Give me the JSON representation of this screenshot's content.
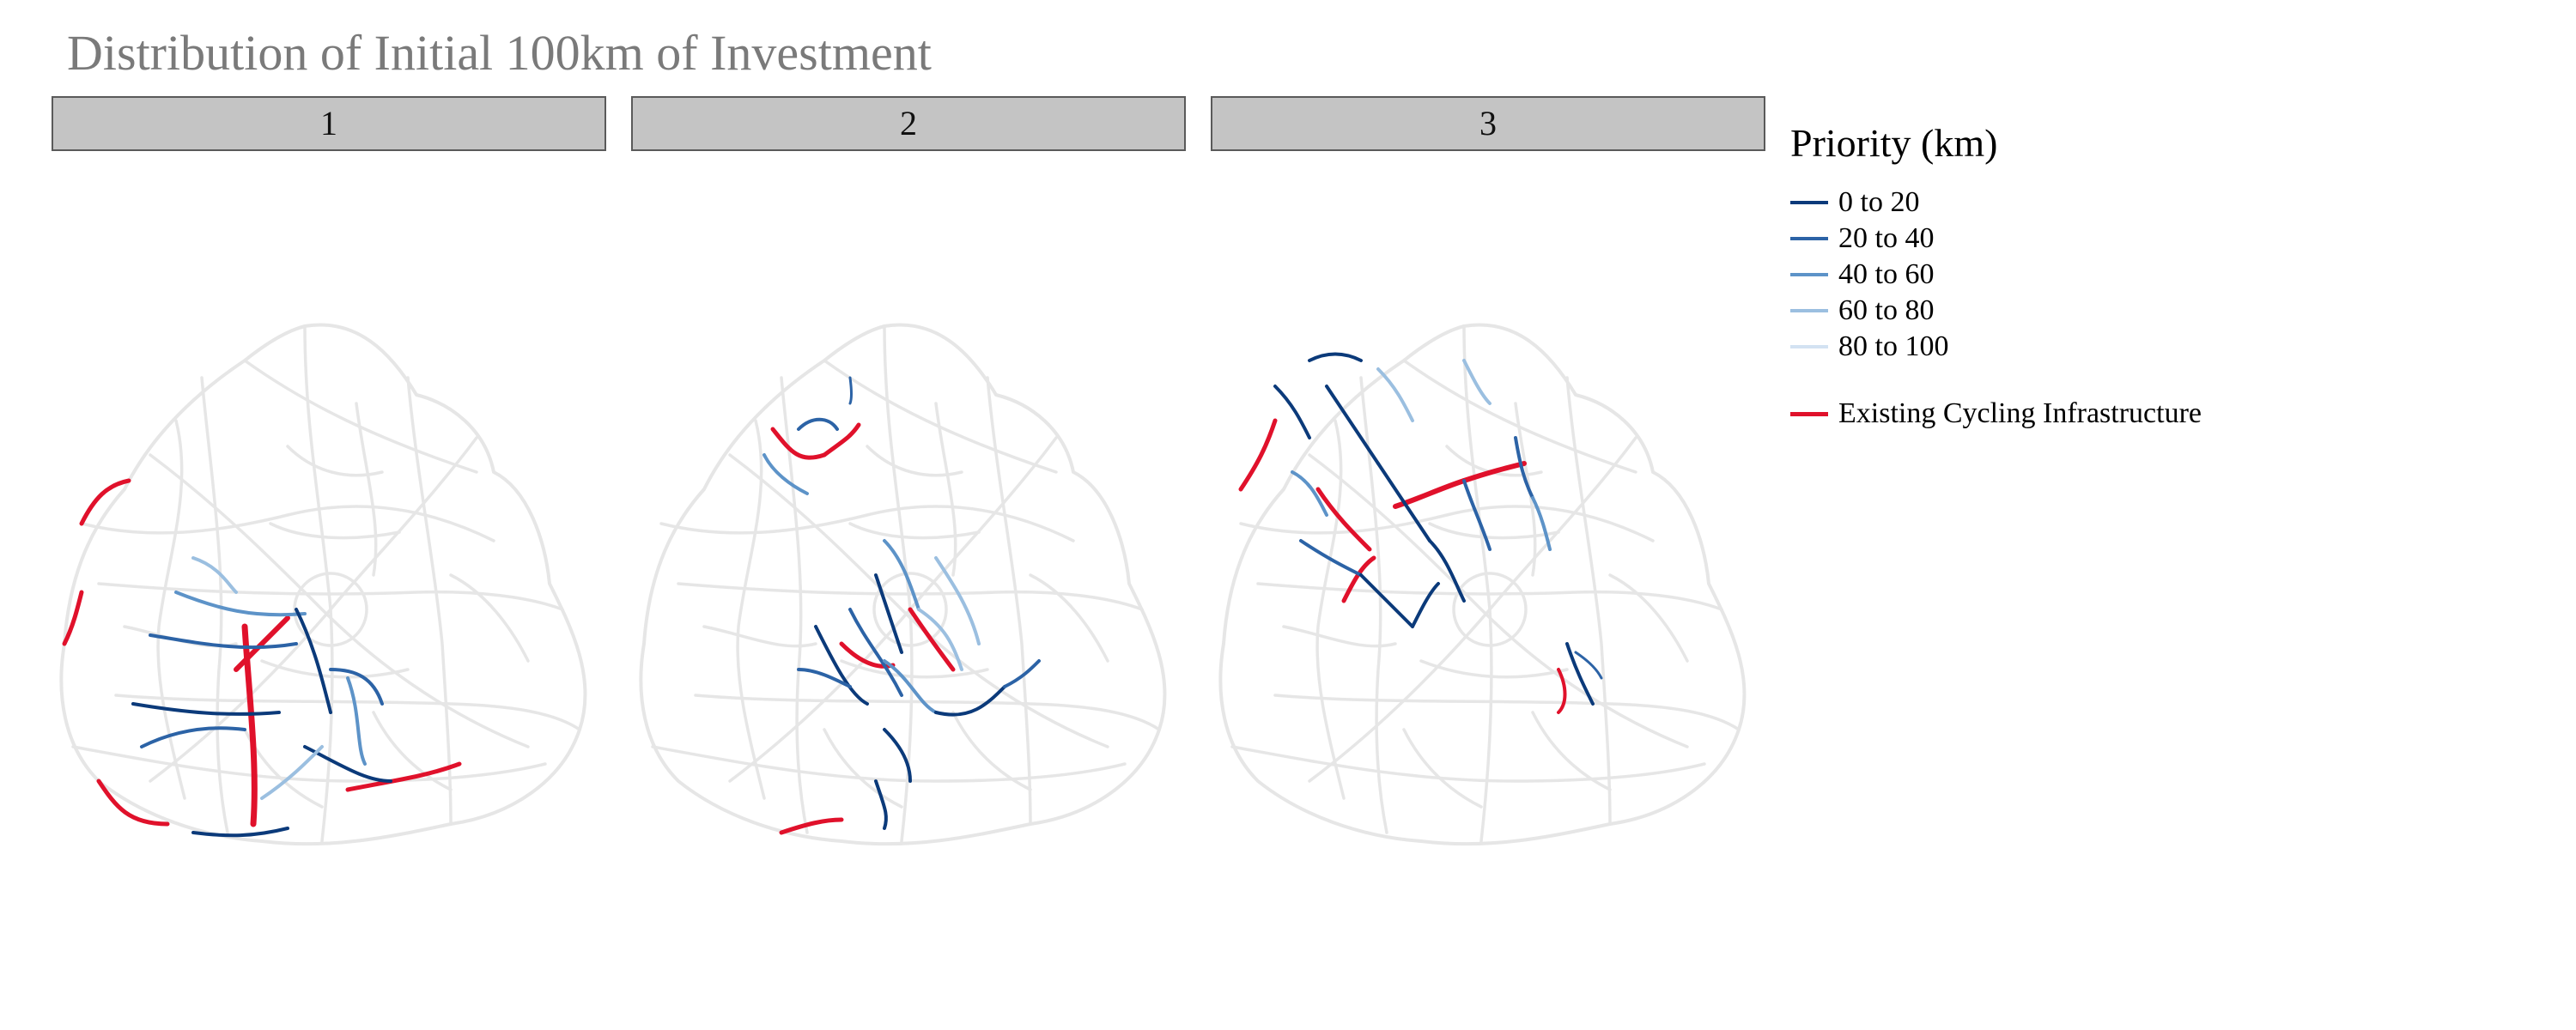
{
  "title": "Distribution of Initial 100km of Investment",
  "facets": [
    {
      "label": "1"
    },
    {
      "label": "2"
    },
    {
      "label": "3"
    }
  ],
  "legend": {
    "title": "Priority (km)",
    "items": [
      {
        "label": "0 to 20",
        "color": "#0b3a7a"
      },
      {
        "label": "20 to 40",
        "color": "#2c63a6"
      },
      {
        "label": "40 to 60",
        "color": "#5d93c8"
      },
      {
        "label": "60 to 80",
        "color": "#9bbfe0"
      },
      {
        "label": "80 to 100",
        "color": "#d3e2f2"
      }
    ],
    "existing": {
      "label": "Existing Cycling Infrastructure",
      "color": "#e0112b"
    }
  },
  "colors": {
    "background_network": "#e6e6e6",
    "strip_fill": "#c4c4c4",
    "title_text": "#7a7a7a"
  }
}
